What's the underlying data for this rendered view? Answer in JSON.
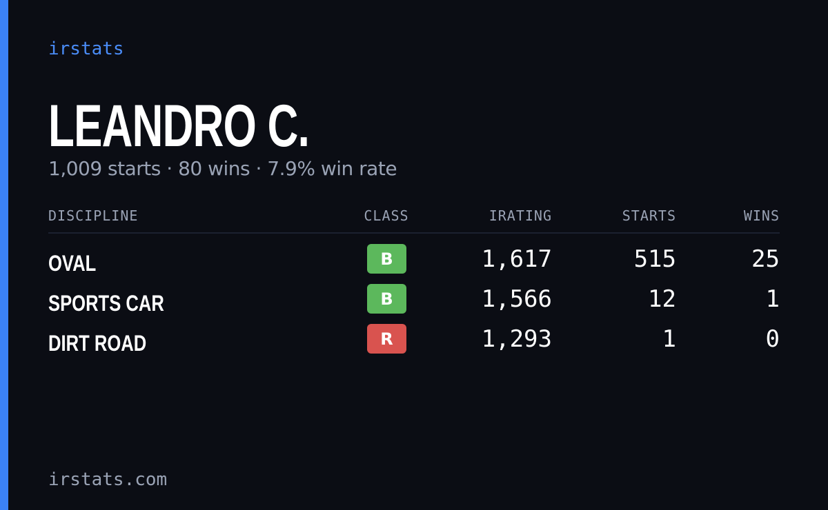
{
  "brand": "irstats",
  "name": "LEANDRO C.",
  "summary": "1,009 starts · 80 wins · 7.9% win rate",
  "table": {
    "headers": [
      "DISCIPLINE",
      "CLASS",
      "IRATING",
      "STARTS",
      "WINS"
    ],
    "rows": [
      [
        "OVAL",
        "B",
        "1,617",
        "515",
        "25"
      ],
      [
        "SPORTS CAR",
        "B",
        "1,566",
        "12",
        "1"
      ],
      [
        "DIRT ROAD",
        "R",
        "1,293",
        "1",
        "0"
      ]
    ]
  },
  "footer": "irstats.com"
}
